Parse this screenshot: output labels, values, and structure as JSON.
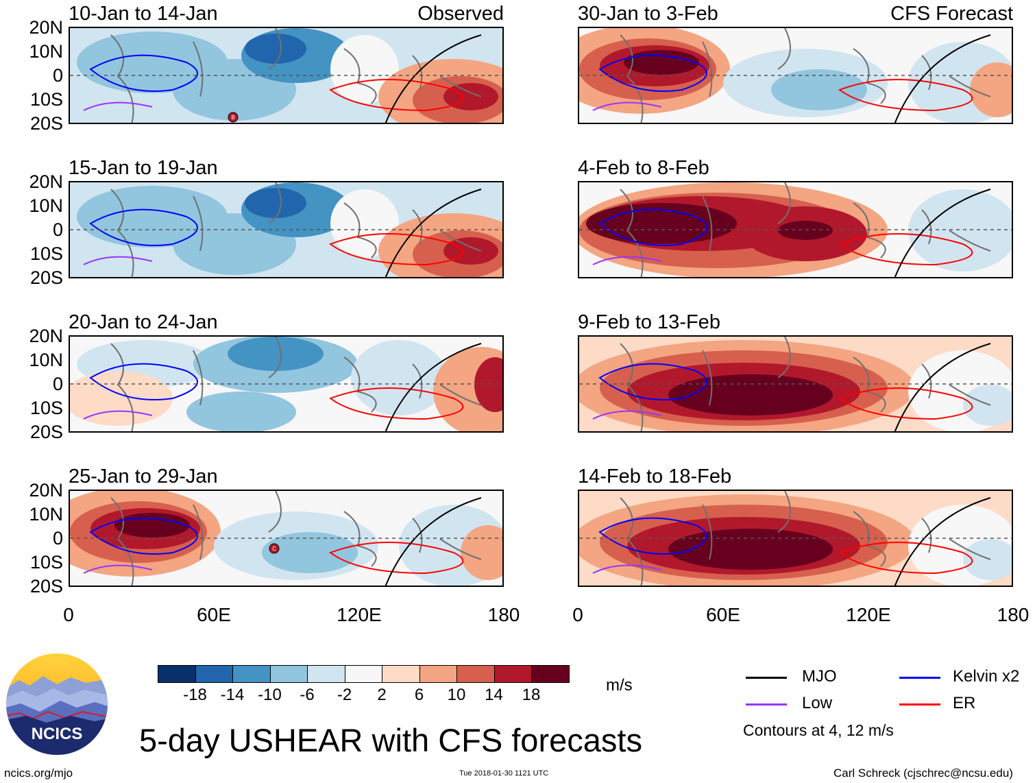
{
  "panels": [
    {
      "title": "10-Jan to 14-Jan",
      "label": "Observed",
      "column": "left",
      "row": 0,
      "base": "blue-west",
      "tc": "B"
    },
    {
      "title": "15-Jan to 19-Jan",
      "label": "",
      "column": "left",
      "row": 1,
      "base": "blue-west",
      "tc": ""
    },
    {
      "title": "20-Jan to 24-Jan",
      "label": "",
      "column": "left",
      "row": 2,
      "base": "mixed",
      "tc": ""
    },
    {
      "title": "25-Jan to 29-Jan",
      "label": "",
      "column": "left",
      "row": 3,
      "base": "red-west",
      "tc": "C"
    },
    {
      "title": "30-Jan to 3-Feb",
      "label": "CFS Forecast",
      "column": "right",
      "row": 0,
      "base": "red-west",
      "tc": ""
    },
    {
      "title": "4-Feb to 8-Feb",
      "label": "",
      "column": "right",
      "row": 1,
      "base": "red-wide",
      "tc": ""
    },
    {
      "title": "9-Feb to 13-Feb",
      "label": "",
      "column": "right",
      "row": 2,
      "base": "red-center",
      "tc": ""
    },
    {
      "title": "14-Feb to 18-Feb",
      "label": "",
      "column": "right",
      "row": 3,
      "base": "red-center",
      "tc": ""
    }
  ],
  "lat_labels": [
    "20N",
    "10N",
    "0",
    "10S",
    "20S"
  ],
  "lon_labels": [
    "0",
    "60E",
    "120E",
    "180"
  ],
  "colorbar": {
    "colors": [
      "#08306b",
      "#2166ac",
      "#4393c3",
      "#92c5de",
      "#d1e5f0",
      "#f7f7f7",
      "#fddbc7",
      "#f4a582",
      "#d6604d",
      "#b2182b",
      "#67001f"
    ],
    "ticks": [
      "-18",
      "-14",
      "-10",
      "-6",
      "-2",
      "2",
      "6",
      "10",
      "14",
      "18"
    ],
    "units": "m/s"
  },
  "legend": {
    "items": [
      {
        "label": "MJO",
        "color": "#000000"
      },
      {
        "label": "Kelvin x2",
        "color": "#0000ff"
      },
      {
        "label": "Low",
        "color": "#9933ff"
      },
      {
        "label": "ER",
        "color": "#ff0000"
      }
    ],
    "note": "Contours at 4, 12 m/s"
  },
  "logo_text": "NCICS",
  "main_title": "5-day USHEAR with CFS forecasts",
  "footer": {
    "left": "ncics.org/mjo",
    "center": "Tue 2018-01-30 1121 UTC",
    "right": "Carl Schreck (cjschrec@ncsu.edu)"
  }
}
